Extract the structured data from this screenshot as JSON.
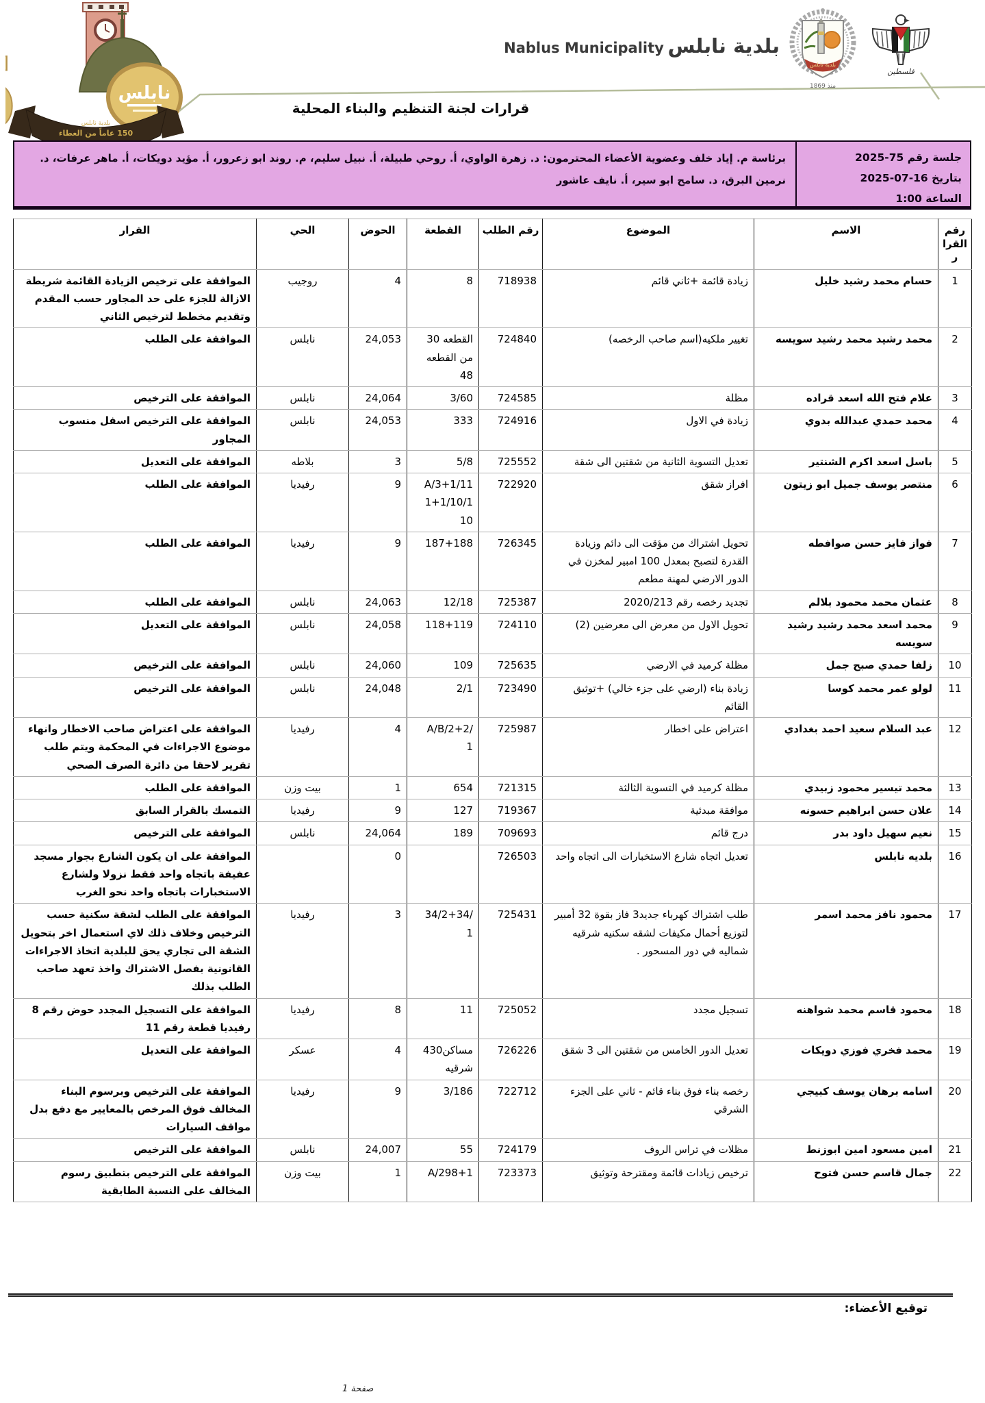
{
  "header": {
    "brand_ar": "بلدية نابلس",
    "brand_en": "Nablus Municipality",
    "title": "قرارات لجنة التنظيم والبناء المحلية",
    "logo150": {
      "number": "150",
      "disc_text": "نابلس",
      "ribbon_line1": "بلدية نابلس",
      "ribbon_line2": "150 عاماً من العطاء"
    },
    "muni_emblem_caption": "منذ 1869",
    "muni_emblem_banner": "بلدية نابلس",
    "pal_emblem_caption": "فلسطين"
  },
  "session": {
    "number_label": "جلسة رقم 75-2025",
    "date_label": "بتاريخ 16-07-2025",
    "time_label": "الساعة 1:00",
    "members_line1": "برئاسة م. إياد خلف وعضوية الأعضاء المحترمون: د. زهرة الواوي، أ. روحي طبيلة، أ. نبيل سليم، م. روند ابو زعرور، أ. مؤيد دويكات، أ. ماهر عرفات، د.",
    "members_line2": "نرمين البرق، د. سامح ابو سير، أ. نايف عاشور"
  },
  "table": {
    "headers": [
      "رقم القرار",
      "الاسم",
      "الموضوع",
      "رقم الطلب",
      "القطعة",
      "الحوض",
      "الحي",
      "القرار"
    ],
    "rows": [
      {
        "no": "1",
        "name": "حسام محمد رشيد خليل",
        "subject": "زيادة قائمة +ثاني قائم",
        "request": "718938",
        "plot_lines": [
          "8"
        ],
        "basin": "4",
        "hood": "روجيب",
        "decision": "الموافقة على ترخيص الزيادة القائمة شريطة الازالة للجزء على حد المجاور حسب المقدم وتقديم مخطط لترخيص الثاني"
      },
      {
        "no": "2",
        "name": "محمد رشيد محمد رشيد سويسه",
        "subject": "تغيير ملكيه(اسم صاحب الرخصه)",
        "request": "724840",
        "plot_lines": [
          "القطعه 30",
          "من القطعه",
          "48"
        ],
        "basin": "24,053",
        "hood": "نابلس",
        "decision": "الموافقة على الطلب"
      },
      {
        "no": "3",
        "name": "علام فتح الله اسعد قراده",
        "subject": "مظلة",
        "request": "724585",
        "plot_lines": [
          "3/60"
        ],
        "basin": "24,064",
        "hood": "نابلس",
        "decision": "الموافقة على الترخيص"
      },
      {
        "no": "4",
        "name": "محمد حمدي عبدالله بدوي",
        "subject": "زيادة في الاول",
        "request": "724916",
        "plot_lines": [
          "333"
        ],
        "basin": "24,053",
        "hood": "نابلس",
        "decision": "الموافقة على الترخيص اسفل منسوب المجاور"
      },
      {
        "no": "5",
        "name": "باسل اسعد اكرم الشنتير",
        "subject": "تعديل التسوية الثانية من شقتين الى شقة",
        "request": "725552",
        "plot_lines": [
          "5/8"
        ],
        "basin": "3",
        "hood": "بلاطه",
        "decision": "الموافقة على التعديل"
      },
      {
        "no": "6",
        "name": "منتصر يوسف جميل ابو زيتون",
        "subject": "افراز شقق",
        "request": "722920",
        "plot_lines": [
          "A/3+1/11",
          "1+1/10/1",
          "10"
        ],
        "basin": "9",
        "hood": "رفيديا",
        "decision": "الموافقة على الطلب"
      },
      {
        "no": "7",
        "name": "فواز فايز حسن صوافطه",
        "subject": "تحويل اشتراك من مؤقت الى دائم وزيادة القدرة لتصبح بمعدل 100 امبير لمخزن في الدور الارضي لمهنة مطعم",
        "request": "726345",
        "plot_lines": [
          "187+188"
        ],
        "basin": "9",
        "hood": "رفيديا",
        "decision": "الموافقة على الطلب"
      },
      {
        "no": "8",
        "name": "عثمان محمد محمود بلالم",
        "subject": "تجديد رخصه رقم 2020/213",
        "request": "725387",
        "plot_lines": [
          "12/18"
        ],
        "basin": "24,063",
        "hood": "نابلس",
        "decision": "الموافقة على الطلب"
      },
      {
        "no": "9",
        "name": "محمد اسعد محمد رشيد رشيد سويسه",
        "subject": "تحويل الاول من معرض الى معرضين (2)",
        "request": "724110",
        "plot_lines": [
          "118+119"
        ],
        "basin": "24,058",
        "hood": "نابلس",
        "decision": "الموافقة على التعديل"
      },
      {
        "no": "10",
        "name": "زلفا حمدي صبح جمل",
        "subject": "مظلة كرميد في الارضي",
        "request": "725635",
        "plot_lines": [
          "109"
        ],
        "basin": "24,060",
        "hood": "نابلس",
        "decision": "الموافقة على الترخيص"
      },
      {
        "no": "11",
        "name": "لولو عمر محمد كوسا",
        "subject": "زيادة بناء (ارضي على جزء خالي) +توثيق القائم",
        "request": "723490",
        "plot_lines": [
          "2/1"
        ],
        "basin": "24,048",
        "hood": "نابلس",
        "decision": "الموافقة على الترخيص"
      },
      {
        "no": "12",
        "name": "عبد السلام سعيد احمد بغدادي",
        "subject": "اعتراض على اخطار",
        "request": "725987",
        "plot_lines": [
          "A/B/2+2/",
          "1"
        ],
        "basin": "4",
        "hood": "رفيديا",
        "decision": "الموافقة على اعتراض صاحب الاخطار وانهاء موضوع الاجراءات في المحكمة ويتم طلب تقرير لاحقا من دائرة الصرف الصحي"
      },
      {
        "no": "13",
        "name": "محمد تيسير محمود زبيدي",
        "subject": "مظلة كرميد في التسوية الثالثة",
        "request": "721315",
        "plot_lines": [
          "654"
        ],
        "basin": "1",
        "hood": "بيت وزن",
        "decision": "الموافقة على الطلب"
      },
      {
        "no": "14",
        "name": "علان حسن ابراهيم حسونه",
        "subject": "موافقة مبدئية",
        "request": "719367",
        "plot_lines": [
          "127"
        ],
        "basin": "9",
        "hood": "رفيديا",
        "decision": "التمسك بالقرار السابق"
      },
      {
        "no": "15",
        "name": "نعيم سهيل داود بدر",
        "subject": "درج قائم",
        "request": "709693",
        "plot_lines": [
          "189"
        ],
        "basin": "24,064",
        "hood": "نابلس",
        "decision": "الموافقة على الترخيص"
      },
      {
        "no": "16",
        "name": "بلديه نابلس",
        "subject": "تعديل اتجاه شارع الاستخبارات الى اتجاه واحد",
        "request": "726503",
        "plot_lines": [],
        "basin": "0",
        "hood": "",
        "decision": "الموافقة على ان يكون الشارع بجوار مسجد عفيفة باتجاه واحد فقط نزولا ولشارع الاستخبارات باتجاه واحد نحو الغرب"
      },
      {
        "no": "17",
        "name": "محمود نافز محمد اسمر",
        "subject": "طلب اشتراك كهرباء جديد3 فاز بقوة 32 أمبير لتوزيع أحمال مكيفات لشقه سكنيه شرقيه شماليه في دور المسحور .",
        "request": "725431",
        "plot_lines": [
          "34/2+34/",
          "1"
        ],
        "basin": "3",
        "hood": "رفيديا",
        "decision": "الموافقة على الطلب لشقة سكنية حسب الترخيص وخلاف ذلك لاي استعمال اخر بتحويل الشقة الى تجاري يحق للبلدية اتخاذ الاجراءات القانونية بفصل الاشتراك واخذ تعهد صاحب الطلب بذلك"
      },
      {
        "no": "18",
        "name": "محمود قاسم محمد شواهنه",
        "subject": "تسجيل مجدد",
        "request": "725052",
        "plot_lines": [
          "11"
        ],
        "basin": "8",
        "hood": "رفيديا",
        "decision": "الموافقة على التسجيل المجدد حوض رقم 8 رفيديا قطعة رقم 11"
      },
      {
        "no": "19",
        "name": "محمد فخري فوزي دويكات",
        "subject": "تعديل الدور الخامس من شقتين الى 3 شقق",
        "request": "726226",
        "plot_lines": [
          "430مساكن",
          "شرقيه"
        ],
        "basin": "4",
        "hood": "عسكر",
        "decision": "الموافقة على التعديل"
      },
      {
        "no": "20",
        "name": "اسامه برهان يوسف كبيجي",
        "subject": "رخصه بناء فوق بناء قائم - ثاني على الجزء الشرقي",
        "request": "722712",
        "plot_lines": [
          "3/186"
        ],
        "basin": "9",
        "hood": "رفيديا",
        "decision": "الموافقة على الترخيص وبرسوم البناء المخالف فوق المرخص بالمعايير مع دفع بدل مواقف السيارات"
      },
      {
        "no": "21",
        "name": "امين مسعود امين ابوزنط",
        "subject": "مظلات في تراس الروف",
        "request": "724179",
        "plot_lines": [
          "55"
        ],
        "basin": "24,007",
        "hood": "نابلس",
        "decision": "الموافقة على الترخيص"
      },
      {
        "no": "22",
        "name": "جمال قاسم حسن فتوح",
        "subject": "ترخيص زيادات قائمة ومقترحة وتوثيق",
        "request": "723373",
        "plot_lines": [
          "A/298+1"
        ],
        "basin": "1",
        "hood": "بيت وزن",
        "decision": "الموافقة على الترخيص بتطبيق رسوم المخالف على النسبة الطابقية"
      }
    ]
  },
  "footer": {
    "signature_label": "توقيع الأعضاء:",
    "page_label": "صفحة 1"
  }
}
